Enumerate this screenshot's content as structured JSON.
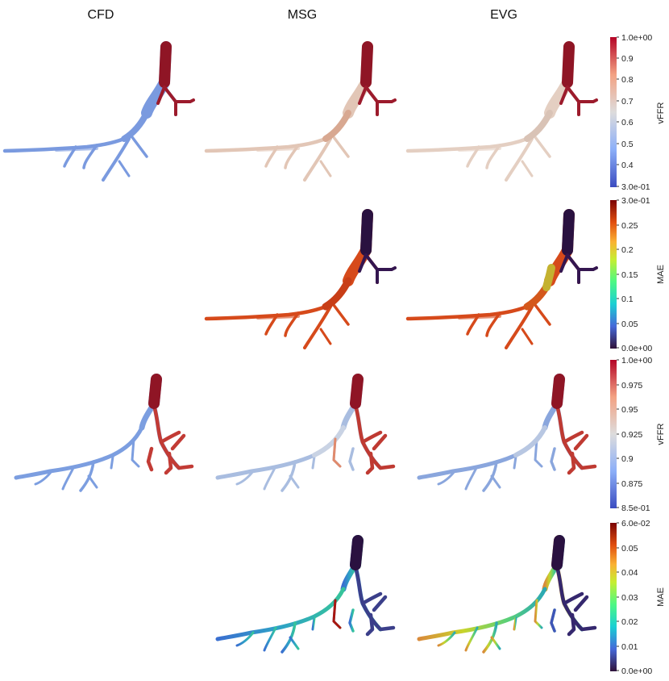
{
  "columns": [
    "CFD",
    "MSG",
    "EVG"
  ],
  "colorbars": [
    {
      "label": "vFFR",
      "colormap": "coolwarm",
      "ticks": [
        "1.0e+00",
        "0.9",
        "0.8",
        "0.7",
        "0.6",
        "0.5",
        "0.4",
        "3.0e-01"
      ]
    },
    {
      "label": "MAE",
      "colormap": "turbo",
      "ticks": [
        "3.0e-01",
        "0.25",
        "0.2",
        "0.15",
        "0.1",
        "0.05",
        "0.0e+00"
      ]
    },
    {
      "label": "vFFR",
      "colormap": "coolwarm",
      "ticks": [
        "1.0e+00",
        "0.975",
        "0.95",
        "0.925",
        "0.9",
        "0.875",
        "8.5e-01"
      ]
    },
    {
      "label": "MAE",
      "colormap": "turbo",
      "ticks": [
        "6.0e-02",
        "0.05",
        "0.04",
        "0.03",
        "0.02",
        "0.01",
        "0.0e+00"
      ]
    }
  ],
  "colors": {
    "vffr_high": "#7f0c1d",
    "vffr_low_blue": "#7b9fe0",
    "vffr_pale": "#e3c9b8",
    "mae_dark": "#2a1140",
    "mae_orange": "#d9471a",
    "turbo_yellow": "#c9d42a",
    "turbo_green": "#4fd07a",
    "turbo_teal": "#26b7b6"
  }
}
